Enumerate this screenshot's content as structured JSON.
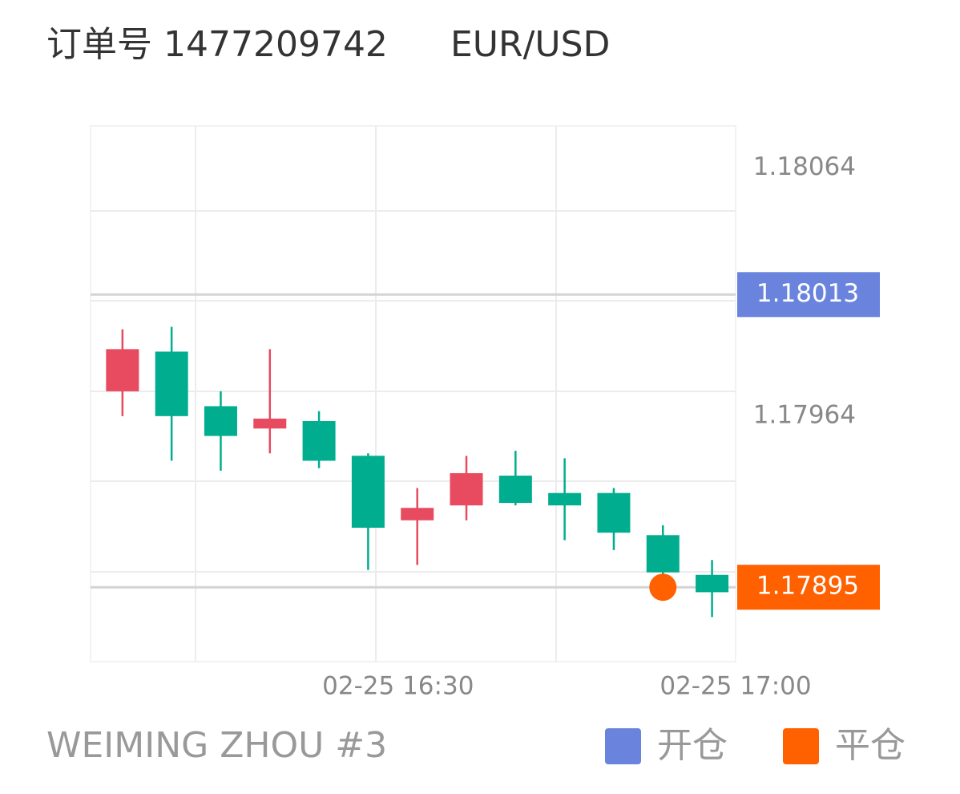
{
  "header": {
    "order": "订单号 1477209742",
    "symbol": "EUR/USD"
  },
  "footer": {
    "account": "WEIMING ZHOU #3"
  },
  "chart_data": {
    "type": "candlestick",
    "categories": [
      null,
      null,
      null,
      null,
      null,
      null,
      null,
      null,
      null,
      null,
      null,
      null,
      null
    ],
    "open": [
      1.17974,
      1.1799,
      1.17968,
      1.17959,
      1.17962,
      1.17948,
      1.17922,
      1.17928,
      1.1794,
      1.17933,
      1.17933,
      1.17916,
      1.179
    ],
    "high": [
      1.17999,
      1.18,
      1.17974,
      1.17991,
      1.17966,
      1.17949,
      1.17935,
      1.17948,
      1.1795,
      1.17947,
      1.17935,
      1.1792,
      1.17906
    ],
    "low": [
      1.17964,
      1.17946,
      1.17942,
      1.17949,
      1.17943,
      1.17902,
      1.17904,
      1.17922,
      1.17928,
      1.17914,
      1.1791,
      1.179,
      1.17883
    ],
    "close": [
      1.17991,
      1.17964,
      1.17956,
      1.17963,
      1.17946,
      1.17919,
      1.17927,
      1.17941,
      1.17929,
      1.17928,
      1.17917,
      1.17901,
      1.17893
    ],
    "up_color": "#e84a5f",
    "down_color": "#00ad8e",
    "ylim": [
      1.17865,
      1.18081
    ],
    "yticks": [
      1.18064,
      1.17964
    ],
    "xlim": [
      -0.65,
      12.48
    ],
    "xticks": [
      {
        "value": 5.61,
        "label": "02-25 16:30"
      },
      {
        "value": 12.48,
        "label": "02-25 17:00"
      }
    ],
    "open_price": 1.18013,
    "close_price": 1.17895,
    "close_index": 11,
    "legend": [
      {
        "name": "开仓",
        "color": "#6a84dd"
      },
      {
        "name": "平仓",
        "color": "#ff6000"
      }
    ]
  }
}
